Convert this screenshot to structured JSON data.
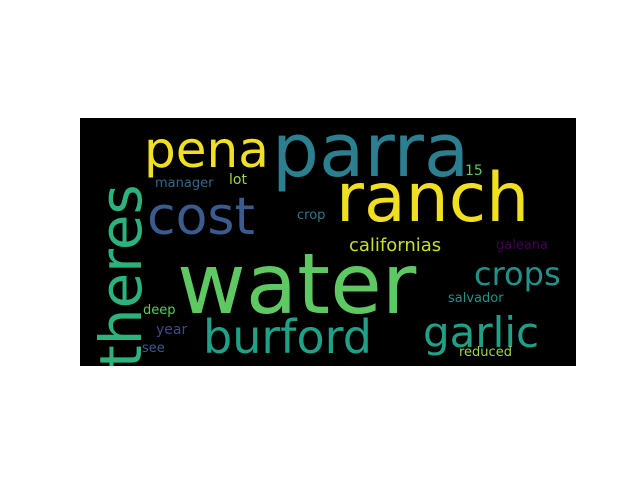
{
  "words": [
    {
      "text": "parra",
      "color": "#2c7f8f"
    },
    {
      "text": "water",
      "color": "#5ec962"
    },
    {
      "text": "ranch",
      "color": "#f0e021"
    },
    {
      "text": "cost",
      "color": "#3b5a8d"
    },
    {
      "text": "pena",
      "color": "#f0e021"
    },
    {
      "text": "theres",
      "color": "#2db27d"
    },
    {
      "text": "burford",
      "color": "#1fa187"
    },
    {
      "text": "garlic",
      "color": "#1fa187"
    },
    {
      "text": "crops",
      "color": "#21918c"
    },
    {
      "text": "californias",
      "color": "#c8e020"
    },
    {
      "text": "manager",
      "color": "#31688e"
    },
    {
      "text": "lot",
      "color": "#9dd93b"
    },
    {
      "text": "15",
      "color": "#5ec962"
    },
    {
      "text": "crop",
      "color": "#2a788e"
    },
    {
      "text": "galeana",
      "color": "#440154"
    },
    {
      "text": "deep",
      "color": "#5ec962"
    },
    {
      "text": "year",
      "color": "#3e4a89"
    },
    {
      "text": "salvador",
      "color": "#21918c"
    },
    {
      "text": "see",
      "color": "#355f8d"
    },
    {
      "text": "reduced",
      "color": "#9dd93b"
    }
  ]
}
